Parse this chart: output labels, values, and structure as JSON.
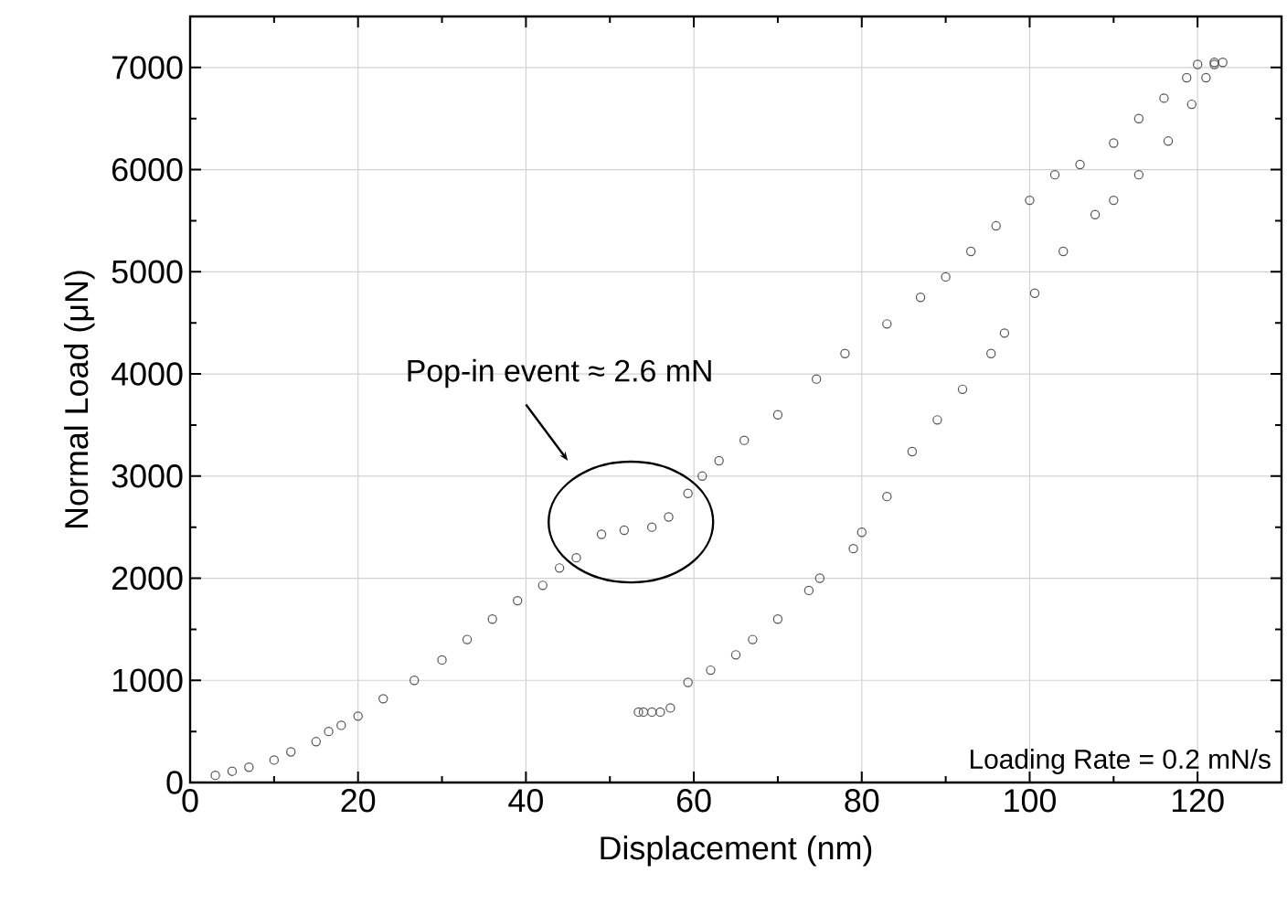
{
  "chart_data": {
    "type": "scatter",
    "xlabel": "Displacement (nm)",
    "ylabel": "Normal Load (μN)",
    "xlim": [
      0,
      130
    ],
    "ylim": [
      0,
      7500
    ],
    "xticks": [
      0,
      20,
      40,
      60,
      80,
      100,
      120
    ],
    "yticks": [
      0,
      1000,
      2000,
      3000,
      4000,
      5000,
      6000,
      7000
    ],
    "grid": true,
    "marker": "circle",
    "series": [
      {
        "color": "#555555",
        "x": [
          3,
          5,
          7,
          10,
          12,
          15,
          16.5,
          18,
          20,
          23,
          26.7,
          30,
          33,
          36,
          39,
          42,
          44,
          46,
          49,
          51.7,
          55,
          57,
          59.3,
          61,
          63,
          66,
          70,
          74.6,
          78,
          83,
          87,
          90,
          93,
          96,
          100,
          103,
          106,
          110,
          113,
          116,
          118.7,
          120,
          122,
          123
        ],
        "values": [
          70,
          110,
          150,
          220,
          300,
          400,
          500,
          560,
          650,
          820,
          1000,
          1200,
          1400,
          1600,
          1780,
          1930,
          2100,
          2200,
          2430,
          2470,
          2500,
          2600,
          2830,
          3000,
          3150,
          3350,
          3600,
          3950,
          4200,
          4490,
          4750,
          4950,
          5200,
          5450,
          5700,
          5950,
          6050,
          6260,
          6500,
          6700,
          6900,
          7030,
          7030,
          7050
        ]
      },
      {
        "color": "#555555",
        "x": [
          122,
          121,
          119.3,
          116.5,
          113,
          110,
          107.8,
          104,
          100.6,
          97,
          95.4,
          92,
          89,
          86,
          83,
          80,
          79,
          75,
          73.7,
          70,
          67,
          65,
          62,
          59.3,
          57.2,
          56,
          55,
          54,
          53.4
        ],
        "values": [
          7050,
          6900,
          6640,
          6280,
          5950,
          5700,
          5560,
          5200,
          4790,
          4400,
          4200,
          3850,
          3550,
          3240,
          2800,
          2450,
          2290,
          2000,
          1880,
          1600,
          1400,
          1250,
          1100,
          980,
          730,
          690,
          690,
          690,
          690
        ]
      }
    ],
    "annotations": [
      "Pop-in event ≈ 2.6 mN",
      "Loading Rate = 0.2 mN/s"
    ]
  }
}
